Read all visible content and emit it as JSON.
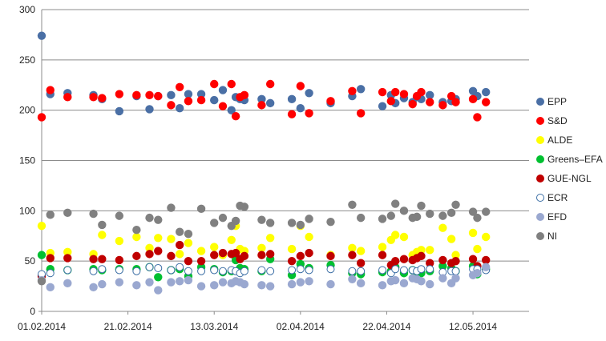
{
  "chart_data": {
    "type": "scatter",
    "title": "",
    "xlabel": "",
    "ylabel": "",
    "ylim": [
      0,
      300
    ],
    "yticks": [
      "0",
      "50",
      "100",
      "150",
      "200",
      "250",
      "300"
    ],
    "xlim": [
      "01.02.2014",
      "25.05.2014"
    ],
    "xticks": [
      "01.02.2014",
      "21.02.2014",
      "13.03.2014",
      "02.04.2014",
      "22.04.2014",
      "12.05.2014"
    ],
    "grid": true,
    "legend_position": "right",
    "x": [
      "01.02.2014",
      "03.02.2014",
      "07.02.2014",
      "13.02.2014",
      "15.02.2014",
      "19.02.2014",
      "23.02.2014",
      "26.02.2014",
      "28.02.2014",
      "03.03.2014",
      "05.03.2014",
      "07.03.2014",
      "10.03.2014",
      "13.03.2014",
      "15.03.2014",
      "17.03.2014",
      "18.03.2014",
      "19.03.2014",
      "20.03.2014",
      "24.03.2014",
      "26.03.2014",
      "31.03.2014",
      "02.04.2014",
      "04.04.2014",
      "09.04.2014",
      "14.04.2014",
      "16.04.2014",
      "21.04.2014",
      "23.04.2014",
      "24.04.2014",
      "26.04.2014",
      "28.04.2014",
      "29.04.2014",
      "30.04.2014",
      "02.05.2014",
      "05.05.2014",
      "07.05.2014",
      "08.05.2014",
      "12.05.2014",
      "13.05.2014",
      "15.05.2014"
    ],
    "series": [
      {
        "name": "EPP",
        "color": "#4a6fa5",
        "marker": "filled",
        "values": [
          274,
          216,
          217,
          215,
          211,
          199,
          214,
          201,
          214,
          215,
          202,
          216,
          216,
          210,
          220,
          200,
          213,
          211,
          210,
          211,
          207,
          211,
          202,
          217,
          207,
          214,
          221,
          204,
          215,
          207,
          212,
          208,
          213,
          211,
          215,
          208,
          209,
          211,
          219,
          214,
          218
        ]
      },
      {
        "name": "S&D",
        "color": "#ff0000",
        "marker": "filled",
        "values": [
          193,
          220,
          213,
          213,
          212,
          216,
          215,
          215,
          214,
          205,
          223,
          209,
          210,
          226,
          204,
          226,
          194,
          213,
          215,
          205,
          226,
          196,
          224,
          197,
          209,
          219,
          197,
          218,
          209,
          218,
          216,
          206,
          214,
          218,
          208,
          205,
          214,
          208,
          211,
          193,
          208
        ]
      },
      {
        "name": "ALDE",
        "color": "#ffff00",
        "marker": "filled",
        "values": [
          85,
          58,
          59,
          57,
          76,
          70,
          74,
          63,
          73,
          72,
          57,
          68,
          60,
          64,
          56,
          71,
          85,
          62,
          60,
          63,
          73,
          62,
          85,
          74,
          56,
          63,
          60,
          64,
          71,
          76,
          74,
          56,
          59,
          61,
          61,
          83,
          72,
          56,
          78,
          62,
          74
        ]
      },
      {
        "name": "Greens–EFA",
        "color": "#00c030",
        "marker": "filled",
        "values": [
          56,
          42,
          41,
          42,
          41,
          42,
          42,
          44,
          34,
          41,
          42,
          35,
          44,
          42,
          39,
          40,
          51,
          43,
          42,
          40,
          52,
          36,
          47,
          43,
          46,
          38,
          37,
          39,
          40,
          44,
          38,
          41,
          37,
          38,
          40,
          45,
          43,
          40,
          45,
          37,
          42
        ]
      },
      {
        "name": "GUE-NGL",
        "color": "#c00000",
        "marker": "filled",
        "values": [
          35,
          53,
          53,
          52,
          52,
          51,
          55,
          57,
          60,
          55,
          66,
          50,
          50,
          56,
          58,
          57,
          58,
          52,
          55,
          56,
          57,
          50,
          55,
          58,
          55,
          56,
          48,
          56,
          46,
          50,
          52,
          51,
          53,
          55,
          48,
          51,
          48,
          50,
          52,
          45,
          51
        ]
      },
      {
        "name": "ECR",
        "color": "#3b6ea5",
        "marker": "hollow",
        "values": [
          37,
          38,
          41,
          40,
          42,
          41,
          40,
          44,
          43,
          41,
          44,
          40,
          40,
          41,
          40,
          41,
          40,
          38,
          40,
          41,
          40,
          41,
          42,
          41,
          42,
          40,
          40,
          41,
          38,
          42,
          41,
          41,
          40,
          42,
          42,
          39,
          40,
          40,
          42,
          42,
          41
        ]
      },
      {
        "name": "EFD",
        "color": "#9aa8d0",
        "marker": "filled",
        "values": [
          31,
          24,
          28,
          24,
          27,
          29,
          26,
          29,
          21,
          29,
          30,
          31,
          25,
          26,
          29,
          28,
          30,
          29,
          27,
          26,
          25,
          27,
          29,
          30,
          27,
          32,
          28,
          26,
          30,
          31,
          28,
          33,
          32,
          30,
          27,
          33,
          28,
          33,
          36,
          38,
          44
        ]
      },
      {
        "name": "NI",
        "color": "#808080",
        "marker": "filled",
        "values": [
          30,
          96,
          98,
          97,
          86,
          95,
          81,
          93,
          91,
          103,
          79,
          77,
          102,
          88,
          93,
          85,
          90,
          105,
          104,
          91,
          88,
          88,
          86,
          92,
          89,
          106,
          93,
          92,
          95,
          107,
          100,
          93,
          94,
          105,
          97,
          95,
          98,
          106,
          99,
          93,
          99
        ]
      }
    ]
  }
}
